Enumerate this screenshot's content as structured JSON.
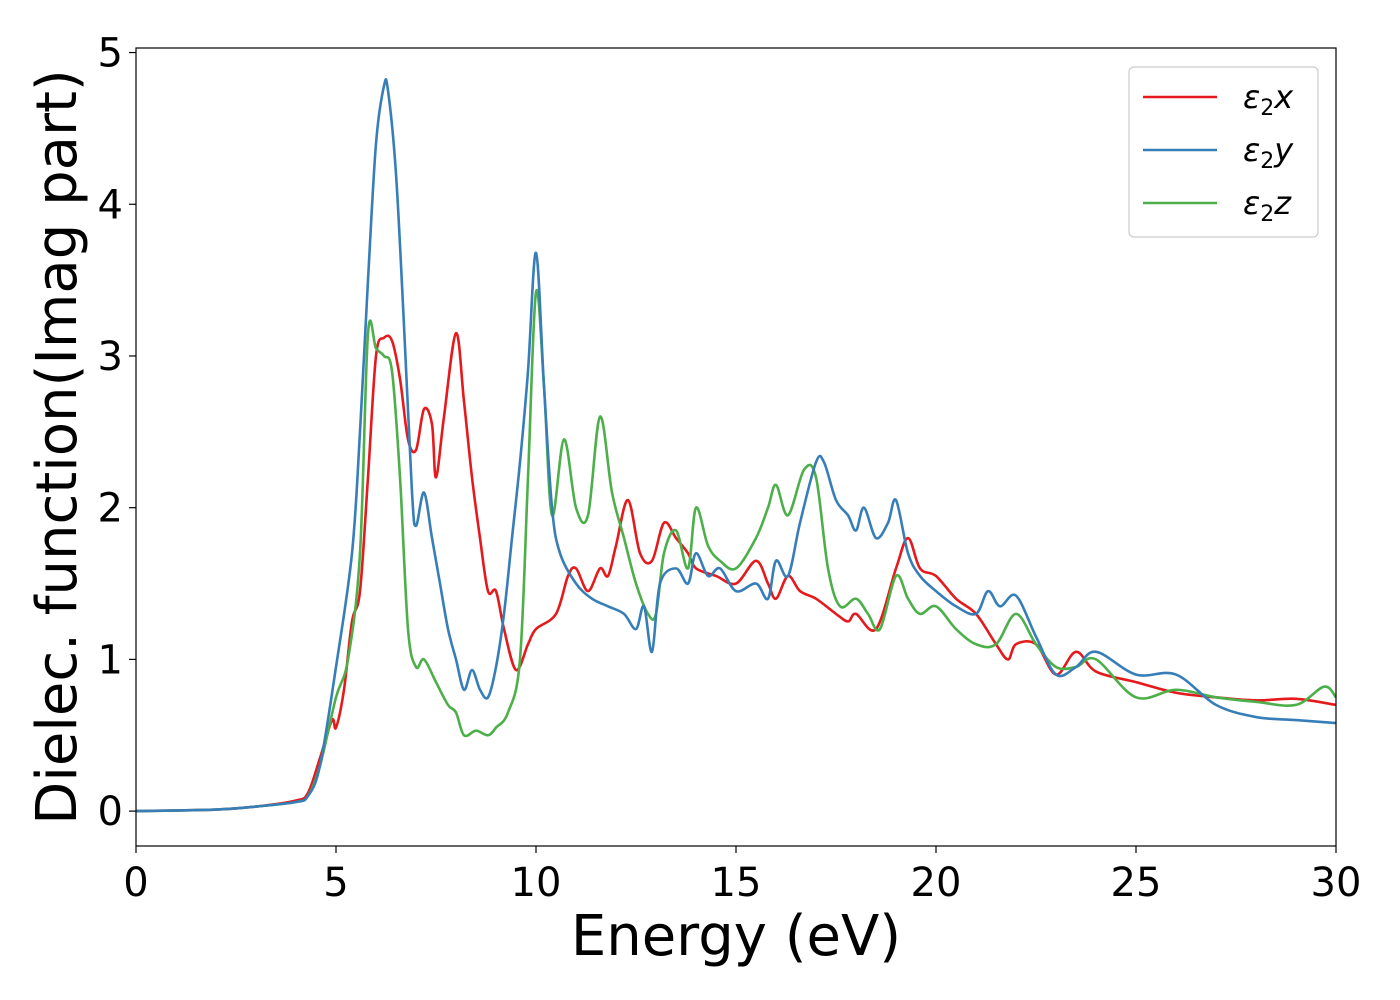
{
  "chart_data": {
    "type": "line",
    "xlabel": "Energy (eV)",
    "ylabel": "Dielec. function(Imag part)",
    "xlim": [
      0,
      30
    ],
    "ylim": [
      -0.23,
      5.03
    ],
    "xticks": [
      0,
      5,
      10,
      15,
      20,
      25,
      30
    ],
    "yticks": [
      0,
      1,
      2,
      3,
      4,
      5
    ],
    "grid": false,
    "legend_position": "top-right",
    "series": [
      {
        "name": "ε₂x",
        "base": "ε",
        "sub": "2",
        "suffix": "x",
        "color": "#e41a1c",
        "points": [
          [
            0,
            0
          ],
          [
            2,
            0.01
          ],
          [
            3,
            0.03
          ],
          [
            4,
            0.07
          ],
          [
            4.3,
            0.12
          ],
          [
            4.6,
            0.35
          ],
          [
            4.9,
            0.6
          ],
          [
            5.0,
            0.55
          ],
          [
            5.2,
            0.8
          ],
          [
            5.4,
            1.25
          ],
          [
            5.6,
            1.45
          ],
          [
            5.8,
            2.2
          ],
          [
            6.0,
            3.0
          ],
          [
            6.2,
            3.12
          ],
          [
            6.4,
            3.1
          ],
          [
            6.6,
            2.85
          ],
          [
            6.8,
            2.45
          ],
          [
            7.0,
            2.38
          ],
          [
            7.2,
            2.65
          ],
          [
            7.4,
            2.55
          ],
          [
            7.5,
            2.2
          ],
          [
            7.7,
            2.6
          ],
          [
            8.0,
            3.15
          ],
          [
            8.2,
            2.7
          ],
          [
            8.4,
            2.2
          ],
          [
            8.6,
            1.8
          ],
          [
            8.8,
            1.45
          ],
          [
            9.0,
            1.45
          ],
          [
            9.2,
            1.2
          ],
          [
            9.5,
            0.93
          ],
          [
            9.8,
            1.1
          ],
          [
            10.0,
            1.2
          ],
          [
            10.5,
            1.3
          ],
          [
            10.8,
            1.55
          ],
          [
            11.0,
            1.6
          ],
          [
            11.3,
            1.45
          ],
          [
            11.6,
            1.6
          ],
          [
            11.8,
            1.55
          ],
          [
            12.0,
            1.75
          ],
          [
            12.3,
            2.05
          ],
          [
            12.6,
            1.7
          ],
          [
            12.9,
            1.65
          ],
          [
            13.2,
            1.9
          ],
          [
            13.5,
            1.8
          ],
          [
            13.8,
            1.7
          ],
          [
            14.0,
            1.6
          ],
          [
            14.5,
            1.55
          ],
          [
            15.0,
            1.5
          ],
          [
            15.5,
            1.65
          ],
          [
            15.8,
            1.5
          ],
          [
            16.0,
            1.4
          ],
          [
            16.3,
            1.55
          ],
          [
            16.6,
            1.45
          ],
          [
            17.0,
            1.4
          ],
          [
            17.5,
            1.3
          ],
          [
            17.8,
            1.25
          ],
          [
            18.0,
            1.3
          ],
          [
            18.5,
            1.2
          ],
          [
            19.0,
            1.6
          ],
          [
            19.3,
            1.8
          ],
          [
            19.6,
            1.6
          ],
          [
            20.0,
            1.55
          ],
          [
            20.5,
            1.4
          ],
          [
            21.0,
            1.3
          ],
          [
            21.5,
            1.1
          ],
          [
            21.8,
            1.0
          ],
          [
            22.0,
            1.1
          ],
          [
            22.5,
            1.1
          ],
          [
            23.0,
            0.9
          ],
          [
            23.5,
            1.05
          ],
          [
            24.0,
            0.92
          ],
          [
            25.0,
            0.85
          ],
          [
            26.0,
            0.78
          ],
          [
            27.0,
            0.75
          ],
          [
            28.0,
            0.73
          ],
          [
            29.0,
            0.74
          ],
          [
            30.0,
            0.7
          ]
        ]
      },
      {
        "name": "ε₂y",
        "base": "ε",
        "sub": "2",
        "suffix": "y",
        "color": "#377eb8",
        "points": [
          [
            0,
            0
          ],
          [
            2,
            0.01
          ],
          [
            3,
            0.03
          ],
          [
            4,
            0.06
          ],
          [
            4.3,
            0.1
          ],
          [
            4.6,
            0.3
          ],
          [
            5.0,
            0.95
          ],
          [
            5.4,
            1.7
          ],
          [
            5.6,
            2.5
          ],
          [
            5.8,
            3.5
          ],
          [
            6.0,
            4.4
          ],
          [
            6.2,
            4.78
          ],
          [
            6.3,
            4.75
          ],
          [
            6.5,
            4.2
          ],
          [
            6.7,
            3.2
          ],
          [
            6.9,
            2.1
          ],
          [
            7.0,
            1.88
          ],
          [
            7.2,
            2.1
          ],
          [
            7.4,
            1.8
          ],
          [
            7.6,
            1.5
          ],
          [
            7.8,
            1.2
          ],
          [
            8.0,
            1.0
          ],
          [
            8.2,
            0.8
          ],
          [
            8.4,
            0.93
          ],
          [
            8.6,
            0.8
          ],
          [
            8.8,
            0.75
          ],
          [
            9.0,
            0.95
          ],
          [
            9.2,
            1.3
          ],
          [
            9.4,
            1.8
          ],
          [
            9.6,
            2.3
          ],
          [
            9.8,
            2.9
          ],
          [
            10.0,
            3.68
          ],
          [
            10.2,
            2.8
          ],
          [
            10.4,
            2.0
          ],
          [
            10.6,
            1.7
          ],
          [
            11.0,
            1.5
          ],
          [
            11.4,
            1.4
          ],
          [
            11.8,
            1.35
          ],
          [
            12.2,
            1.3
          ],
          [
            12.5,
            1.2
          ],
          [
            12.7,
            1.35
          ],
          [
            12.9,
            1.05
          ],
          [
            13.1,
            1.5
          ],
          [
            13.5,
            1.6
          ],
          [
            13.8,
            1.5
          ],
          [
            14.0,
            1.7
          ],
          [
            14.3,
            1.55
          ],
          [
            14.6,
            1.6
          ],
          [
            15.0,
            1.45
          ],
          [
            15.5,
            1.5
          ],
          [
            15.8,
            1.4
          ],
          [
            16.0,
            1.65
          ],
          [
            16.3,
            1.55
          ],
          [
            16.6,
            1.9
          ],
          [
            17.0,
            2.3
          ],
          [
            17.2,
            2.3
          ],
          [
            17.5,
            2.05
          ],
          [
            17.8,
            1.95
          ],
          [
            18.0,
            1.85
          ],
          [
            18.2,
            2.0
          ],
          [
            18.5,
            1.8
          ],
          [
            18.8,
            1.9
          ],
          [
            19.0,
            2.05
          ],
          [
            19.3,
            1.7
          ],
          [
            19.6,
            1.55
          ],
          [
            20.0,
            1.45
          ],
          [
            20.5,
            1.35
          ],
          [
            21.0,
            1.3
          ],
          [
            21.3,
            1.45
          ],
          [
            21.6,
            1.35
          ],
          [
            22.0,
            1.42
          ],
          [
            22.5,
            1.15
          ],
          [
            23.0,
            0.9
          ],
          [
            23.5,
            0.95
          ],
          [
            24.0,
            1.05
          ],
          [
            25.0,
            0.9
          ],
          [
            26.0,
            0.9
          ],
          [
            27.0,
            0.7
          ],
          [
            28.0,
            0.62
          ],
          [
            29.0,
            0.6
          ],
          [
            30.0,
            0.58
          ]
        ]
      },
      {
        "name": "ε₂z",
        "base": "ε",
        "sub": "2",
        "suffix": "z",
        "color": "#4daf4a",
        "points": [
          [
            0,
            0
          ],
          [
            2,
            0.01
          ],
          [
            3,
            0.03
          ],
          [
            4,
            0.06
          ],
          [
            4.3,
            0.1
          ],
          [
            4.6,
            0.3
          ],
          [
            5.0,
            0.75
          ],
          [
            5.3,
            1.0
          ],
          [
            5.6,
            1.7
          ],
          [
            5.8,
            3.15
          ],
          [
            6.0,
            3.05
          ],
          [
            6.2,
            3.0
          ],
          [
            6.4,
            2.9
          ],
          [
            6.6,
            2.2
          ],
          [
            6.8,
            1.2
          ],
          [
            7.0,
            0.95
          ],
          [
            7.2,
            1.0
          ],
          [
            7.5,
            0.85
          ],
          [
            7.8,
            0.7
          ],
          [
            8.0,
            0.65
          ],
          [
            8.2,
            0.5
          ],
          [
            8.5,
            0.53
          ],
          [
            8.8,
            0.5
          ],
          [
            9.0,
            0.55
          ],
          [
            9.3,
            0.65
          ],
          [
            9.6,
            1.0
          ],
          [
            9.8,
            2.2
          ],
          [
            10.0,
            3.42
          ],
          [
            10.2,
            2.8
          ],
          [
            10.4,
            1.95
          ],
          [
            10.7,
            2.45
          ],
          [
            11.0,
            2.0
          ],
          [
            11.3,
            1.95
          ],
          [
            11.6,
            2.6
          ],
          [
            11.9,
            2.1
          ],
          [
            12.2,
            1.8
          ],
          [
            12.5,
            1.5
          ],
          [
            12.8,
            1.3
          ],
          [
            13.0,
            1.3
          ],
          [
            13.2,
            1.7
          ],
          [
            13.5,
            1.85
          ],
          [
            13.8,
            1.6
          ],
          [
            14.0,
            2.0
          ],
          [
            14.3,
            1.75
          ],
          [
            14.6,
            1.65
          ],
          [
            15.0,
            1.6
          ],
          [
            15.5,
            1.8
          ],
          [
            15.8,
            2.0
          ],
          [
            16.0,
            2.15
          ],
          [
            16.3,
            1.95
          ],
          [
            16.7,
            2.25
          ],
          [
            17.0,
            2.2
          ],
          [
            17.3,
            1.6
          ],
          [
            17.6,
            1.35
          ],
          [
            18.0,
            1.4
          ],
          [
            18.3,
            1.3
          ],
          [
            18.6,
            1.2
          ],
          [
            19.0,
            1.55
          ],
          [
            19.3,
            1.4
          ],
          [
            19.6,
            1.3
          ],
          [
            20.0,
            1.35
          ],
          [
            20.5,
            1.2
          ],
          [
            21.0,
            1.1
          ],
          [
            21.5,
            1.1
          ],
          [
            22.0,
            1.3
          ],
          [
            22.5,
            1.1
          ],
          [
            23.0,
            0.95
          ],
          [
            23.5,
            0.95
          ],
          [
            24.0,
            1.0
          ],
          [
            25.0,
            0.75
          ],
          [
            26.0,
            0.8
          ],
          [
            27.0,
            0.75
          ],
          [
            28.0,
            0.72
          ],
          [
            29.0,
            0.7
          ],
          [
            29.7,
            0.82
          ],
          [
            30.0,
            0.75
          ]
        ]
      }
    ]
  }
}
